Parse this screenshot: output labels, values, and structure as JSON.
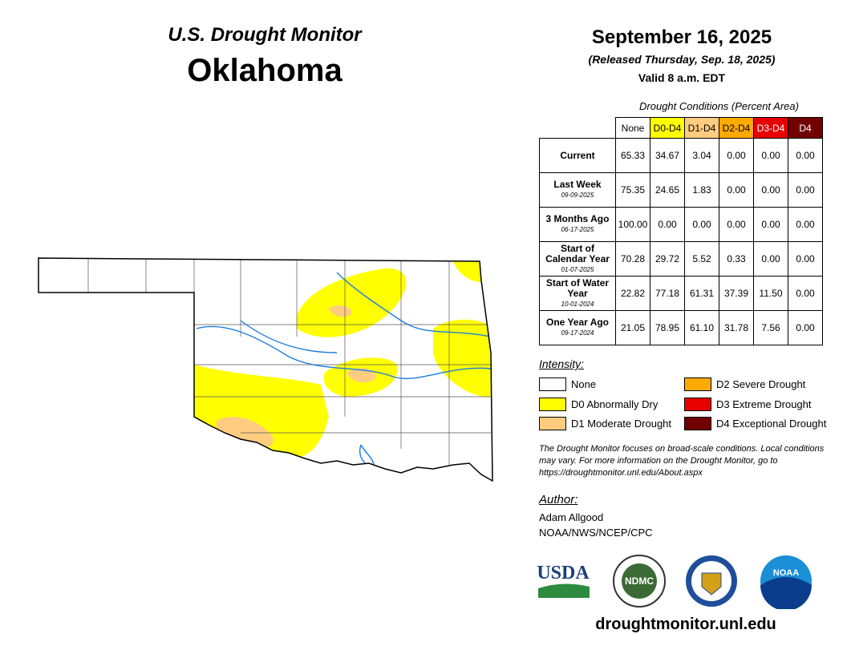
{
  "header": {
    "title": "U.S. Drought Monitor",
    "state": "Oklahoma",
    "date": "September 16, 2025",
    "released": "(Released Thursday, Sep. 18, 2025)",
    "valid": "Valid 8 a.m. EDT"
  },
  "table": {
    "caption": "Drought Conditions (Percent Area)",
    "columns": [
      "None",
      "D0-D4",
      "D1-D4",
      "D2-D4",
      "D3-D4",
      "D4"
    ],
    "rows": [
      {
        "label": "Current",
        "values": [
          "65.33",
          "34.67",
          "3.04",
          "0.00",
          "0.00",
          "0.00"
        ]
      },
      {
        "label": "Last Week",
        "date": "09-09-2025",
        "values": [
          "75.35",
          "24.65",
          "1.83",
          "0.00",
          "0.00",
          "0.00"
        ]
      },
      {
        "label": "3 Months Ago",
        "date": "06-17-2025",
        "values": [
          "100.00",
          "0.00",
          "0.00",
          "0.00",
          "0.00",
          "0.00"
        ]
      },
      {
        "label": "Start of Calendar Year",
        "date": "01-07-2025",
        "values": [
          "70.28",
          "29.72",
          "5.52",
          "0.33",
          "0.00",
          "0.00"
        ]
      },
      {
        "label": "Start of Water Year",
        "date": "10-01-2024",
        "values": [
          "22.82",
          "77.18",
          "61.31",
          "37.39",
          "11.50",
          "0.00"
        ]
      },
      {
        "label": "One Year Ago",
        "date": "09-17-2024",
        "values": [
          "21.05",
          "78.95",
          "61.10",
          "31.78",
          "7.56",
          "0.00"
        ]
      }
    ]
  },
  "legend": {
    "title": "Intensity:",
    "items": [
      "None",
      "D0 Abnormally Dry",
      "D1 Moderate Drought",
      "D2 Severe Drought",
      "D3 Extreme Drought",
      "D4 Exceptional Drought"
    ]
  },
  "note": "The Drought Monitor focuses on broad-scale conditions. Local conditions may vary. For more information on the Drought Monitor, go to https://droughtmonitor.unl.edu/About.aspx",
  "author": {
    "title": "Author:",
    "name": "Adam Allgood",
    "org": "NOAA/NWS/NCEP/CPC"
  },
  "logos": {
    "usda": "USDA",
    "ndmc": "NDMC",
    "noaa": "NOAA"
  },
  "footer": "droughtmonitor.unl.edu"
}
